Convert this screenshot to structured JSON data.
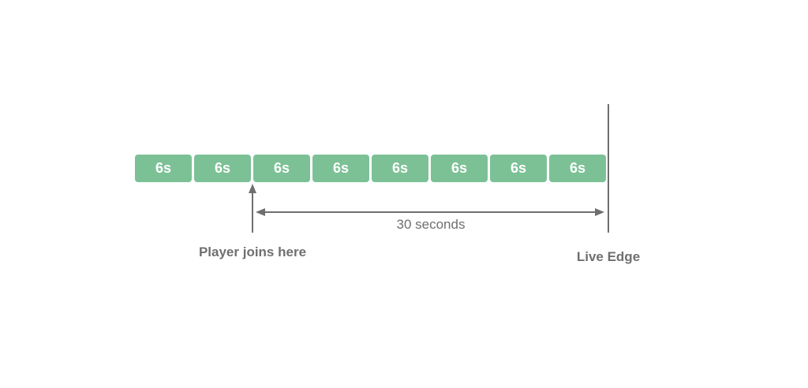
{
  "colors": {
    "segment_fill": "#7cc196",
    "line": "#6f6f6f"
  },
  "segments": [
    {
      "label": "6s"
    },
    {
      "label": "6s"
    },
    {
      "label": "6s"
    },
    {
      "label": "6s"
    },
    {
      "label": "6s"
    },
    {
      "label": "6s"
    },
    {
      "label": "6s"
    },
    {
      "label": "6s"
    }
  ],
  "annotations": {
    "player_joins": "Player joins here",
    "live_edge": "Live Edge",
    "duration": "30 seconds"
  }
}
